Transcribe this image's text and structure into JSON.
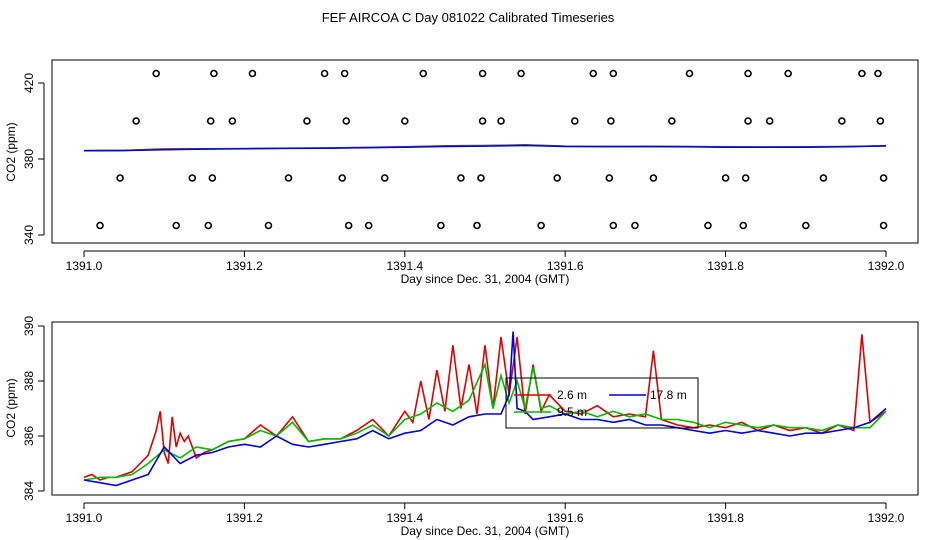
{
  "title": "FEF AIRCOA C  Day 081022  Calibrated Timeseries",
  "colors": {
    "series_a": "#e00000",
    "series_b": "#00bb00",
    "series_c": "#0000dd",
    "axis": "#000000"
  },
  "chart_data": [
    {
      "type": "scatter",
      "xlabel": "Day since Dec. 31, 2004 (GMT)",
      "ylabel": "CO2 (ppm)",
      "xlim": [
        1391.0,
        1392.0
      ],
      "ylim": [
        340,
        430
      ],
      "xticks": [
        "1391.0",
        "1391.2",
        "1391.4",
        "1391.6",
        "1391.8",
        "1392.0"
      ],
      "xtick_values": [
        1391.0,
        1391.2,
        1391.4,
        1391.6,
        1391.8,
        1392.0
      ],
      "yticks": [
        "340",
        "380",
        "420"
      ],
      "ytick_values": [
        340,
        380,
        420
      ],
      "grid": false,
      "legend": "none",
      "points": {
        "x": [
          1391.02,
          1391.045,
          1391.065,
          1391.09,
          1391.115,
          1391.135,
          1391.155,
          1391.16,
          1391.158,
          1391.162,
          1391.185,
          1391.21,
          1391.23,
          1391.255,
          1391.278,
          1391.3,
          1391.322,
          1391.327,
          1391.33,
          1391.325,
          1391.355,
          1391.375,
          1391.4,
          1391.423,
          1391.445,
          1391.47,
          1391.49,
          1391.495,
          1391.497,
          1391.497,
          1391.52,
          1391.545,
          1391.57,
          1391.59,
          1391.612,
          1391.635,
          1391.655,
          1391.657,
          1391.66,
          1391.66,
          1391.687,
          1391.71,
          1391.733,
          1391.755,
          1391.778,
          1391.8,
          1391.822,
          1391.825,
          1391.828,
          1391.828,
          1391.855,
          1391.878,
          1391.9,
          1391.922,
          1391.945,
          1391.97,
          1391.99,
          1391.993,
          1391.997,
          1391.997
        ],
        "y": [
          345,
          370,
          400,
          425,
          345,
          370,
          345,
          370,
          400,
          425,
          400,
          425,
          345,
          370,
          400,
          425,
          370,
          400,
          345,
          425,
          345,
          370,
          400,
          425,
          345,
          370,
          345,
          370,
          400,
          425,
          400,
          425,
          345,
          370,
          400,
          425,
          370,
          400,
          345,
          425,
          345,
          370,
          400,
          425,
          345,
          370,
          345,
          370,
          400,
          425,
          400,
          425,
          345,
          370,
          400,
          425,
          425,
          400,
          370,
          345
        ]
      },
      "series": [
        {
          "values": {
            "x": [
              1391.0,
              1391.05,
              1391.1,
              1391.15,
              1391.2,
              1391.25,
              1391.3,
              1391.35,
              1391.4,
              1391.45,
              1391.5,
              1391.55,
              1391.6,
              1391.65,
              1391.7,
              1391.75,
              1391.8,
              1391.85,
              1391.9,
              1391.95,
              1392.0
            ],
            "y": [
              384.4,
              384.6,
              385.3,
              385.4,
              385.5,
              385.7,
              385.8,
              386.1,
              386.4,
              387.0,
              387.1,
              387.5,
              386.8,
              386.6,
              386.7,
              386.6,
              386.4,
              386.3,
              386.4,
              386.6,
              386.9
            ]
          }
        },
        {
          "values": {
            "x": [
              1391.0,
              1391.05,
              1391.1,
              1391.15,
              1391.2,
              1391.25,
              1391.3,
              1391.35,
              1391.4,
              1391.45,
              1391.5,
              1391.55,
              1391.6,
              1391.65,
              1391.7,
              1391.75,
              1391.8,
              1391.85,
              1391.9,
              1391.95,
              1392.0
            ],
            "y": [
              384.4,
              384.5,
              385.0,
              385.3,
              385.5,
              385.7,
              385.8,
              386.0,
              386.3,
              386.8,
              387.0,
              387.3,
              386.7,
              386.6,
              386.6,
              386.5,
              386.3,
              386.3,
              386.3,
              386.5,
              386.9
            ]
          }
        },
        {
          "values": {
            "x": [
              1391.0,
              1391.05,
              1391.1,
              1391.15,
              1391.2,
              1391.25,
              1391.3,
              1391.35,
              1391.4,
              1391.45,
              1391.5,
              1391.55,
              1391.6,
              1391.65,
              1391.7,
              1391.75,
              1391.8,
              1391.85,
              1391.9,
              1391.95,
              1392.0
            ],
            "y": [
              384.3,
              384.4,
              384.9,
              385.2,
              385.4,
              385.6,
              385.7,
              385.9,
              386.2,
              386.6,
              386.8,
              387.1,
              386.6,
              386.5,
              386.5,
              386.4,
              386.2,
              386.2,
              386.2,
              386.4,
              386.9
            ]
          }
        }
      ]
    },
    {
      "type": "line",
      "xlabel": "Day since Dec. 31, 2004 (GMT)",
      "ylabel": "CO2 (ppm)",
      "xlim": [
        1391.0,
        1392.0
      ],
      "ylim": [
        384,
        390
      ],
      "xticks": [
        "1391.0",
        "1391.2",
        "1391.4",
        "1391.6",
        "1391.8",
        "1392.0"
      ],
      "xtick_values": [
        1391.0,
        1391.2,
        1391.4,
        1391.6,
        1391.8,
        1392.0
      ],
      "yticks": [
        "384",
        "386",
        "388",
        "390"
      ],
      "ytick_values": [
        384,
        386,
        388,
        390
      ],
      "grid": false,
      "legend": "center",
      "series": [
        {
          "name": "2.6 m",
          "color": "#e00000",
          "x": [
            1391.0,
            1391.01,
            1391.02,
            1391.03,
            1391.04,
            1391.05,
            1391.06,
            1391.07,
            1391.08,
            1391.09,
            1391.095,
            1391.1,
            1391.105,
            1391.11,
            1391.115,
            1391.12,
            1391.125,
            1391.13,
            1391.14,
            1391.15,
            1391.16,
            1391.18,
            1391.2,
            1391.22,
            1391.24,
            1391.26,
            1391.28,
            1391.3,
            1391.32,
            1391.34,
            1391.36,
            1391.38,
            1391.4,
            1391.41,
            1391.42,
            1391.43,
            1391.44,
            1391.45,
            1391.46,
            1391.47,
            1391.48,
            1391.49,
            1391.5,
            1391.51,
            1391.52,
            1391.53,
            1391.54,
            1391.55,
            1391.56,
            1391.57,
            1391.58,
            1391.6,
            1391.62,
            1391.64,
            1391.66,
            1391.68,
            1391.7,
            1391.71,
            1391.72,
            1391.74,
            1391.76,
            1391.78,
            1391.8,
            1391.82,
            1391.84,
            1391.86,
            1391.88,
            1391.9,
            1391.92,
            1391.94,
            1391.96,
            1391.97,
            1391.98,
            1392.0
          ],
          "y": [
            384.5,
            384.6,
            384.4,
            384.5,
            384.5,
            384.6,
            384.7,
            385.0,
            385.3,
            386.2,
            386.9,
            385.4,
            385.0,
            386.7,
            385.6,
            386.1,
            385.8,
            386.0,
            385.2,
            385.4,
            385.5,
            385.8,
            385.9,
            386.4,
            386.0,
            386.7,
            385.8,
            385.9,
            385.9,
            386.2,
            386.6,
            386.0,
            386.9,
            386.5,
            388.0,
            386.6,
            388.4,
            386.9,
            389.3,
            387.0,
            388.6,
            386.8,
            389.3,
            387.0,
            389.6,
            387.5,
            389.6,
            386.8,
            388.6,
            386.9,
            387.5,
            386.9,
            386.8,
            387.1,
            386.7,
            386.8,
            386.7,
            389.1,
            386.6,
            386.4,
            386.3,
            386.4,
            386.3,
            386.5,
            386.2,
            386.4,
            386.2,
            386.3,
            386.1,
            386.4,
            386.2,
            389.7,
            386.5,
            386.9
          ]
        },
        {
          "name": "9.5 m",
          "color": "#00bb00",
          "x": [
            1391.0,
            1391.02,
            1391.04,
            1391.06,
            1391.08,
            1391.1,
            1391.12,
            1391.14,
            1391.16,
            1391.18,
            1391.2,
            1391.22,
            1391.24,
            1391.26,
            1391.28,
            1391.3,
            1391.32,
            1391.34,
            1391.36,
            1391.38,
            1391.4,
            1391.42,
            1391.44,
            1391.46,
            1391.48,
            1391.5,
            1391.51,
            1391.52,
            1391.53,
            1391.54,
            1391.55,
            1391.56,
            1391.57,
            1391.58,
            1391.6,
            1391.62,
            1391.64,
            1391.66,
            1391.68,
            1391.7,
            1391.72,
            1391.74,
            1391.76,
            1391.78,
            1391.8,
            1391.82,
            1391.84,
            1391.86,
            1391.88,
            1391.9,
            1391.92,
            1391.94,
            1391.96,
            1391.98,
            1392.0
          ],
          "y": [
            384.4,
            384.5,
            384.5,
            384.6,
            385.0,
            385.5,
            385.2,
            385.6,
            385.5,
            385.8,
            385.9,
            386.2,
            386.0,
            386.5,
            385.8,
            385.9,
            385.9,
            386.1,
            386.4,
            386.0,
            386.6,
            386.8,
            387.2,
            386.9,
            387.3,
            388.6,
            387.0,
            388.2,
            387.2,
            388.0,
            387.0,
            388.5,
            387.0,
            387.1,
            386.8,
            386.9,
            386.7,
            386.9,
            386.7,
            386.8,
            386.6,
            386.6,
            386.5,
            386.3,
            386.5,
            386.4,
            386.3,
            386.4,
            386.3,
            386.3,
            386.2,
            386.4,
            386.3,
            386.3,
            386.9
          ]
        },
        {
          "name": "17.8 m",
          "color": "#0000dd",
          "x": [
            1391.0,
            1391.02,
            1391.04,
            1391.06,
            1391.08,
            1391.1,
            1391.12,
            1391.14,
            1391.16,
            1391.18,
            1391.2,
            1391.22,
            1391.24,
            1391.26,
            1391.28,
            1391.3,
            1391.32,
            1391.34,
            1391.36,
            1391.38,
            1391.4,
            1391.42,
            1391.44,
            1391.46,
            1391.48,
            1391.5,
            1391.52,
            1391.53,
            1391.535,
            1391.54,
            1391.55,
            1391.56,
            1391.58,
            1391.6,
            1391.62,
            1391.64,
            1391.66,
            1391.68,
            1391.7,
            1391.72,
            1391.74,
            1391.76,
            1391.78,
            1391.8,
            1391.82,
            1391.84,
            1391.86,
            1391.88,
            1391.9,
            1391.92,
            1391.94,
            1391.96,
            1391.98,
            1392.0
          ],
          "y": [
            384.4,
            384.3,
            384.2,
            384.4,
            384.6,
            385.6,
            385.0,
            385.3,
            385.4,
            385.6,
            385.7,
            385.6,
            386.0,
            385.7,
            385.6,
            385.7,
            385.8,
            385.9,
            386.2,
            385.9,
            386.1,
            386.2,
            386.6,
            386.4,
            386.7,
            386.8,
            386.8,
            387.5,
            389.8,
            387.0,
            386.9,
            386.6,
            386.7,
            386.8,
            386.6,
            386.6,
            386.5,
            386.6,
            386.4,
            386.4,
            386.3,
            386.2,
            386.1,
            386.2,
            386.1,
            386.2,
            386.1,
            386.0,
            386.1,
            386.1,
            386.2,
            386.3,
            386.5,
            387.0
          ]
        }
      ]
    }
  ]
}
